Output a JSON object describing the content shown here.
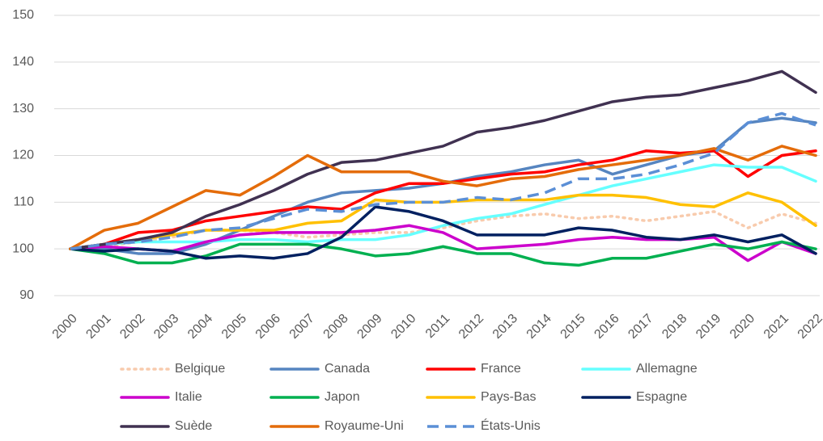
{
  "chart_data": {
    "type": "line",
    "categories": [
      "2000",
      "2001",
      "2002",
      "2003",
      "2004",
      "2005",
      "2006",
      "2007",
      "2008",
      "2009",
      "2010",
      "2011",
      "2012",
      "2013",
      "2014",
      "2015",
      "2016",
      "2017",
      "2018",
      "2019",
      "2020",
      "2021",
      "2022"
    ],
    "ylim": [
      90,
      150
    ],
    "yticks": [
      90,
      100,
      110,
      120,
      130,
      140,
      150
    ],
    "grid": true,
    "series": [
      {
        "name": "Belgique",
        "color": "#f8cbad",
        "dash": "dot",
        "values": [
          100,
          100.5,
          101.5,
          102.5,
          104,
          104,
          103.5,
          102.5,
          103,
          103.5,
          103.5,
          104.5,
          106,
          107,
          107.5,
          106.5,
          107,
          106,
          107,
          108,
          104.5,
          107.5,
          105.5
        ]
      },
      {
        "name": "Canada",
        "color": "#5685c0",
        "dash": "solid",
        "values": [
          100,
          100,
          99,
          99,
          101,
          104,
          107,
          110,
          112,
          112.5,
          113,
          114,
          115.5,
          116.5,
          118,
          119,
          116,
          118,
          120,
          121,
          127,
          128,
          127
        ]
      },
      {
        "name": "France",
        "color": "#ff0000",
        "dash": "solid",
        "values": [
          100,
          101,
          103.5,
          104,
          106,
          107,
          108,
          109,
          108.5,
          112,
          114,
          114,
          115,
          116,
          116.5,
          118,
          119,
          121,
          120.5,
          121,
          115.5,
          120,
          121
        ]
      },
      {
        "name": "Allemagne",
        "color": "#66ffff",
        "dash": "solid",
        "values": [
          100,
          101,
          101.5,
          101.5,
          101.5,
          102,
          102,
          101.5,
          102,
          102,
          103,
          105,
          106.5,
          107.5,
          109.5,
          111.5,
          113.5,
          115,
          116.5,
          118,
          117.5,
          117.5,
          114.5
        ]
      },
      {
        "name": "Italie",
        "color": "#cc00cc",
        "dash": "solid",
        "values": [
          100,
          100.5,
          100,
          99.5,
          101.5,
          103,
          103.5,
          103.5,
          103.5,
          104,
          105,
          103.5,
          100,
          100.5,
          101,
          102,
          102.5,
          102,
          102,
          102.5,
          97.5,
          101.5,
          99
        ]
      },
      {
        "name": "Japon",
        "color": "#00b050",
        "dash": "solid",
        "values": [
          100,
          99,
          97,
          97,
          98.5,
          101,
          101,
          101,
          100,
          98.5,
          99,
          100.5,
          99,
          99,
          97,
          96.5,
          98,
          98,
          99.5,
          101,
          100,
          101.5,
          100
        ]
      },
      {
        "name": "Pays-Bas",
        "color": "#ffc000",
        "dash": "solid",
        "values": [
          100,
          101,
          102,
          103,
          104,
          104,
          104,
          105.5,
          106,
          110.5,
          110,
          110,
          110.5,
          110.5,
          110.5,
          111.5,
          111.5,
          111,
          109.5,
          109,
          112,
          110,
          105
        ]
      },
      {
        "name": "Espagne",
        "color": "#002060",
        "dash": "solid",
        "values": [
          100,
          99.5,
          100,
          99.5,
          98,
          98.5,
          98,
          99,
          102.5,
          109,
          108,
          106,
          103,
          103,
          103,
          104.5,
          104,
          102.5,
          102,
          103,
          101.5,
          103,
          99
        ]
      },
      {
        "name": "Suède",
        "color": "#403151",
        "dash": "solid",
        "values": [
          100,
          101,
          102,
          103.5,
          107,
          109.5,
          112.5,
          116,
          118.5,
          119,
          120.5,
          122,
          125,
          126,
          127.5,
          129.5,
          131.5,
          132.5,
          133,
          134.5,
          136,
          138,
          133.5
        ]
      },
      {
        "name": "Royaume-Uni",
        "color": "#e46c0a",
        "dash": "solid",
        "values": [
          100,
          104,
          105.5,
          109,
          112.5,
          111.5,
          115.5,
          120,
          116.5,
          116.5,
          116.5,
          114.5,
          113.5,
          115,
          115.5,
          117,
          118,
          119,
          120,
          121.5,
          119,
          122,
          120
        ]
      },
      {
        "name": "États-Unis",
        "color": "#5b8fd6",
        "dash": "dash",
        "values": [
          100,
          101,
          101.5,
          102.5,
          104,
          104.5,
          106.5,
          108.5,
          108,
          109.5,
          110,
          110,
          111,
          110.5,
          112,
          115,
          115,
          116,
          118,
          120.5,
          127,
          129,
          126.5
        ]
      }
    ]
  }
}
